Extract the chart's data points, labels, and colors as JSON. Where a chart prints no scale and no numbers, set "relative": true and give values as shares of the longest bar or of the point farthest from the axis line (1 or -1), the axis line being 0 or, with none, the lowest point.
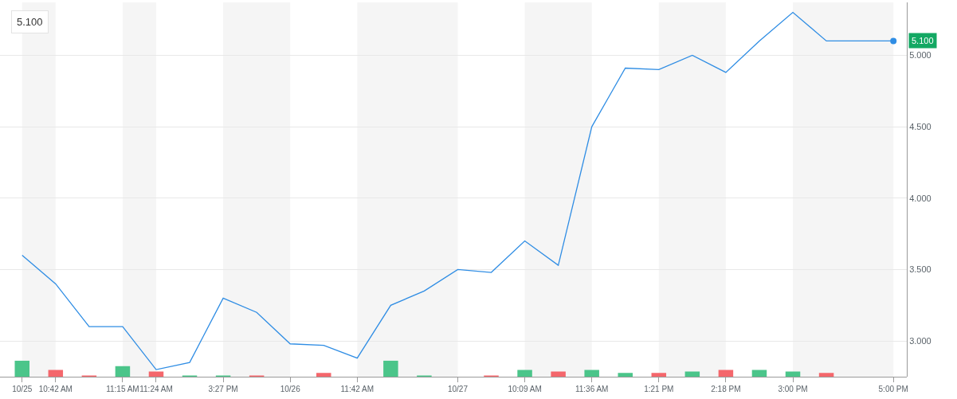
{
  "chart_data": [
    {
      "type": "line",
      "tick_labels": "y",
      "categories": [
        "10/25",
        "10:42 AM",
        null,
        "11:15 AM",
        "11:24 AM",
        null,
        "3:27 PM",
        null,
        "10/26",
        null,
        "11:42 AM",
        null,
        null,
        "10/27",
        null,
        "10:09 AM",
        null,
        "11:36 AM",
        null,
        "1:21 PM",
        null,
        "2:18 PM",
        null,
        "3:00 PM",
        null,
        null,
        "5:00 PM"
      ],
      "series": [
        {
          "color": "#2f8de4",
          "values": [
            3.6,
            3.4,
            3.1,
            3.1,
            2.8,
            2.85,
            3.3,
            3.2,
            2.98,
            2.97,
            2.88,
            3.25,
            3.35,
            3.5,
            3.48,
            3.7,
            3.53,
            4.5,
            4.91,
            4.9,
            5.0,
            4.88,
            5.1,
            5.3,
            5.1,
            5.1,
            5.1
          ],
          "value_labels": [
            null,
            null,
            null,
            null,
            null,
            null,
            null,
            null,
            null,
            null,
            null,
            null,
            null,
            null,
            null,
            null,
            null,
            null,
            null,
            null,
            null,
            null,
            null,
            null,
            null,
            null,
            "5.100"
          ]
        }
      ],
      "ylim": [
        2.75,
        5.37
      ],
      "yticks": [
        {
          "value": 3,
          "label": "3.000"
        },
        {
          "value": 3.5,
          "label": "3.500"
        },
        {
          "value": 4,
          "label": "4.000"
        },
        {
          "value": 4.5,
          "label": "4.500"
        },
        {
          "value": 5,
          "label": "5.000"
        }
      ],
      "grid": "y",
      "bands": [
        {
          "axis": "x",
          "from": "10/25",
          "to": "10:42 AM",
          "color": "#f5f5f5"
        },
        {
          "axis": "x",
          "from": "11:15 AM",
          "to": "11:24 AM",
          "color": "#f5f5f5"
        },
        {
          "axis": "x",
          "from": "3:27 PM",
          "to": "10/26",
          "color": "#f5f5f5"
        },
        {
          "axis": "x",
          "from": "11:42 AM",
          "to": "10/27",
          "color": "#f5f5f5"
        },
        {
          "axis": "x",
          "from": "10:09 AM",
          "to": "11:36 AM",
          "color": "#f5f5f5"
        },
        {
          "axis": "x",
          "from": "1:21 PM",
          "to": "2:18 PM",
          "color": "#f5f5f5"
        },
        {
          "axis": "x",
          "from": "3:00 PM",
          "to": "5:00 PM",
          "color": "#f5f5f5"
        }
      ],
      "annotations": [
        "5.100"
      ]
    },
    {
      "type": "bar",
      "relative": true,
      "categories": [
        "10/25",
        "10:42 AM",
        null,
        "11:15 AM",
        "11:24 AM",
        null,
        "3:27 PM",
        null,
        "10/26",
        null,
        "11:42 AM",
        null,
        null,
        "10/27",
        null,
        "10:09 AM",
        null,
        "11:36 AM",
        null,
        "1:21 PM",
        null,
        "2:18 PM",
        null,
        "3:00 PM",
        null,
        null,
        "5:00 PM"
      ],
      "values": [
        1.0,
        0.42,
        0.08,
        0.66,
        0.32,
        0.08,
        0.08,
        0.08,
        null,
        0.23,
        null,
        1.0,
        0.08,
        null,
        0.08,
        0.42,
        0.32,
        0.42,
        0.23,
        0.23,
        0.32,
        0.42,
        0.42,
        0.32,
        0.23,
        null,
        null
      ],
      "colors": [
        "#4bc58a",
        "#f4676c",
        "#f4676c",
        "#4bc58a",
        "#f4676c",
        "#4bc58a",
        "#4bc58a",
        "#f4676c",
        null,
        "#f4676c",
        null,
        "#4bc58a",
        "#4bc58a",
        null,
        "#f4676c",
        "#4bc58a",
        "#f4676c",
        "#4bc58a",
        "#4bc58a",
        "#f4676c",
        "#4bc58a",
        "#f4676c",
        "#4bc58a",
        "#4bc58a",
        "#f4676c",
        null,
        null
      ]
    }
  ]
}
